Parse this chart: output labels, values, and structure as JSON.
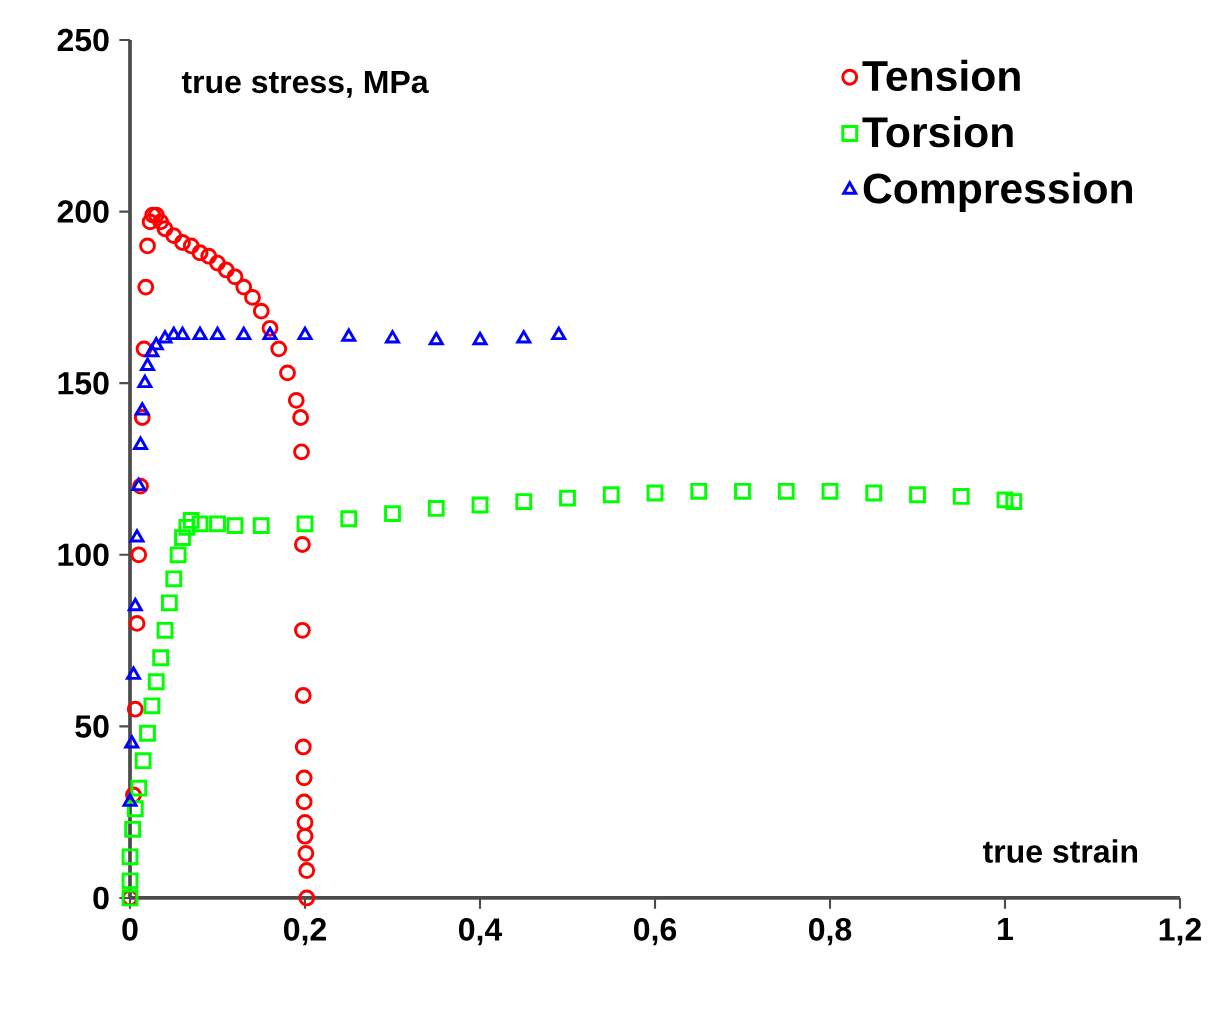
{
  "chart_data": {
    "type": "scatter",
    "xlabel": "true  strain",
    "ylabel": "true stress, MPa",
    "xlim": [
      0,
      1.2
    ],
    "ylim": [
      0,
      250
    ],
    "xticks": [
      0,
      {
        "value": 0.2,
        "label": "0,2"
      },
      {
        "value": 0.4,
        "label": "0,4"
      },
      {
        "value": 0.6,
        "label": "0,6"
      },
      {
        "value": 0.8,
        "label": "0,8"
      },
      1,
      {
        "value": 1.2,
        "label": "1,2"
      }
    ],
    "yticks": [
      0,
      50,
      100,
      150,
      200,
      250
    ],
    "grid": false,
    "legend": "top right",
    "series": [
      {
        "name": "Tension",
        "color": "#ff0000",
        "marker": "circle",
        "x": [
          0,
          0.002,
          0.004,
          0.006,
          0.008,
          0.01,
          0.012,
          0.014,
          0.016,
          0.018,
          0.02,
          0.023,
          0.026,
          0.03,
          0.035,
          0.04,
          0.05,
          0.06,
          0.07,
          0.08,
          0.09,
          0.1,
          0.11,
          0.12,
          0.13,
          0.14,
          0.15,
          0.16,
          0.17,
          0.18,
          0.19,
          0.195,
          0.196,
          0.197,
          0.197,
          0.198,
          0.198,
          0.199,
          0.199,
          0.2,
          0.2,
          0.201,
          0.202,
          0.202
        ],
        "values": [
          0,
          null,
          30,
          55,
          80,
          100,
          120,
          140,
          160,
          178,
          190,
          197,
          199,
          199,
          197,
          195,
          193,
          191,
          190,
          188,
          187,
          185,
          183,
          181,
          178,
          175,
          171,
          166,
          160,
          153,
          145,
          140,
          130,
          103,
          78,
          59,
          44,
          35,
          28,
          22,
          18,
          13,
          8,
          0
        ]
      },
      {
        "name": "Torsion",
        "color": "#00ff00",
        "marker": "square",
        "x": [
          0,
          0,
          0,
          0.003,
          0.006,
          0.01,
          0.015,
          0.02,
          0.025,
          0.03,
          0.035,
          0.04,
          0.045,
          0.05,
          0.055,
          0.06,
          0.065,
          0.07,
          0.08,
          0.1,
          0.12,
          0.15,
          0.2,
          0.25,
          0.3,
          0.35,
          0.4,
          0.45,
          0.5,
          0.55,
          0.6,
          0.65,
          0.7,
          0.75,
          0.8,
          0.85,
          0.9,
          0.95,
          1.0,
          1.01
        ],
        "values": [
          0,
          5,
          12,
          20,
          26,
          32,
          40,
          48,
          56,
          63,
          70,
          78,
          86,
          93,
          100,
          105,
          108,
          110,
          109,
          109,
          108.5,
          108.5,
          109,
          110.5,
          112,
          113.5,
          114.5,
          115.5,
          116.5,
          117.5,
          118,
          118.5,
          118.5,
          118.5,
          118.5,
          118,
          117.5,
          117,
          116,
          115.5
        ]
      },
      {
        "name": "Compression",
        "color": "#0000ff",
        "marker": "triangle",
        "x": [
          0,
          0.002,
          0.004,
          0.006,
          0.008,
          0.01,
          0.012,
          0.014,
          0.017,
          0.02,
          0.025,
          0.03,
          0.04,
          0.05,
          0.06,
          0.08,
          0.1,
          0.13,
          0.16,
          0.2,
          0.25,
          0.3,
          0.35,
          0.4,
          0.45,
          0.49
        ],
        "values": [
          28,
          45,
          65,
          85,
          105,
          120,
          132,
          142,
          150,
          155,
          159,
          161,
          163,
          164,
          164,
          164,
          164,
          164,
          164,
          164,
          163.5,
          163,
          162.5,
          162.5,
          163,
          164
        ]
      }
    ]
  }
}
